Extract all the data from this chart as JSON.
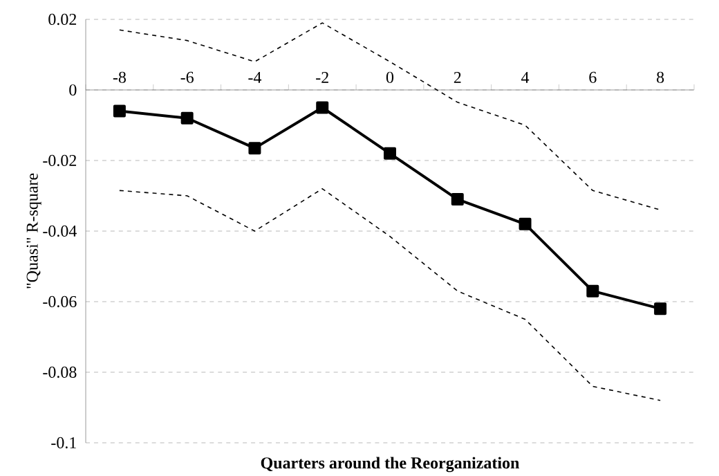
{
  "chart_data": {
    "type": "line",
    "xlabel": "Quarters around the Reorganization",
    "ylabel": "\"Quasi\" R-square",
    "categories": [
      "-8",
      "-6",
      "-4",
      "-2",
      "0",
      "2",
      "4",
      "6",
      "8"
    ],
    "series": [
      {
        "color": "#000000",
        "marker": "square",
        "line_style": "solid",
        "values": [
          -0.006,
          -0.008,
          -0.0165,
          -0.005,
          -0.018,
          -0.031,
          -0.038,
          -0.057,
          -0.062
        ]
      },
      {
        "color": "#000000",
        "marker": "none",
        "line_style": "dashed",
        "values": [
          0.017,
          0.014,
          0.008,
          0.019,
          0.008,
          -0.0035,
          -0.01,
          -0.0285,
          -0.034
        ]
      },
      {
        "color": "#000000",
        "marker": "none",
        "line_style": "dashed",
        "values": [
          -0.0285,
          -0.03,
          -0.04,
          -0.028,
          -0.0415,
          -0.057,
          -0.065,
          -0.084,
          -0.088
        ]
      }
    ],
    "ylim": [
      -0.1,
      0.02
    ],
    "yticks": [
      -0.1,
      -0.08,
      -0.06,
      -0.04,
      -0.02,
      0,
      0.02
    ],
    "grid": "y"
  }
}
